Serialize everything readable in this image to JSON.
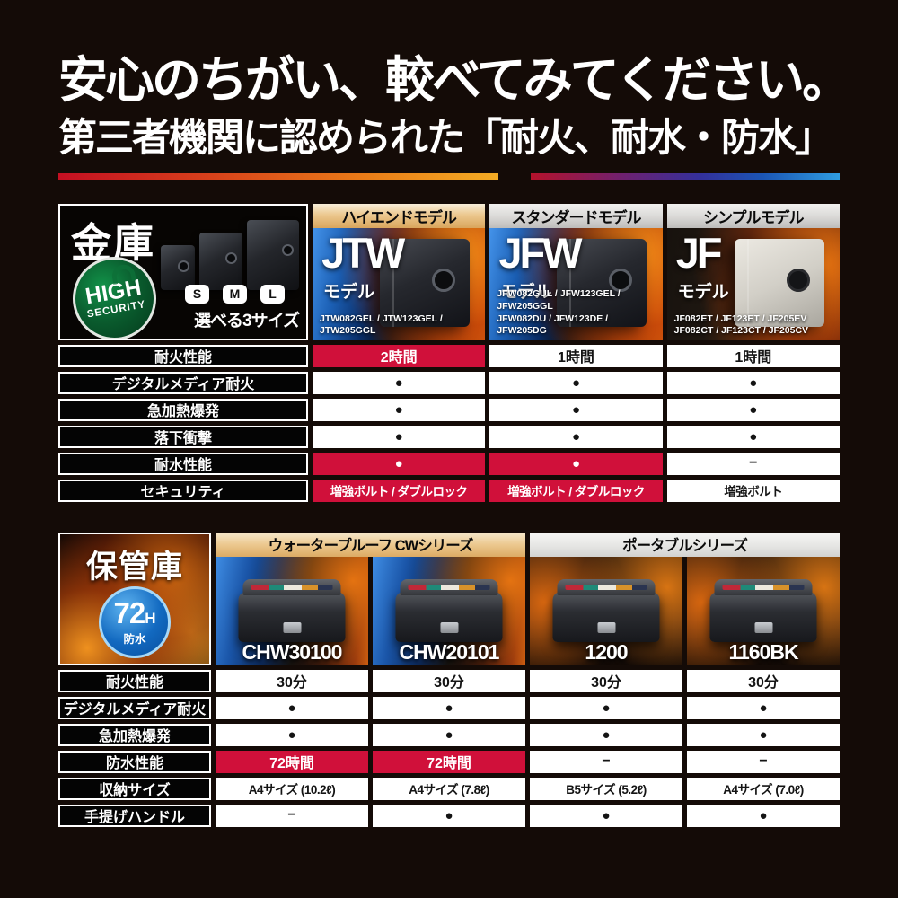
{
  "header": {
    "title_line1": "安心のちがい、較べてみてください。",
    "title_line2": "第三者機関に認められた「耐火、耐水・防水」"
  },
  "colors": {
    "accent_red": "#d0103a",
    "highend_gold": "#e0ab62",
    "series_gray": "#d9d8d6",
    "badge_green": "#0a5c2e",
    "badge_blue": "#1269c0",
    "fire_bar": [
      "#c40f22",
      "#f3ac24"
    ],
    "water_bar": [
      "#b5122b",
      "#2f9de0"
    ]
  },
  "safes_table": {
    "section_label": "金庫",
    "badge": {
      "line1": "HIGH",
      "line2": "SECURITY"
    },
    "sizes": [
      "S",
      "M",
      "L"
    ],
    "sizes_caption": "選べる3サイズ",
    "columns": [
      {
        "tier": "ハイエンドモデル",
        "model": "JTW",
        "model_type": "モデル",
        "numbers_line1": "JTW082GEL / JTW123GEL /",
        "numbers_line2": "JTW205GGL"
      },
      {
        "tier": "スタンダードモデル",
        "model": "JFW",
        "model_type": "モデル",
        "numbers_line1": "JFW082GUL / JFW123GEL / JFW205GGL",
        "numbers_line2": "JFW082DU / JFW123DE / JFW205DG"
      },
      {
        "tier": "シンプルモデル",
        "model": "JF",
        "model_type": "モデル",
        "numbers_line1": "JF082ET / JF123ET / JF205EV",
        "numbers_line2": "JF082CT / JF123CT / JF205CV"
      }
    ],
    "rows": [
      {
        "label": "耐火性能",
        "values": [
          "2時間",
          "1時間",
          "1時間"
        ]
      },
      {
        "label": "デジタルメディア耐火",
        "values": [
          "●",
          "●",
          "●"
        ]
      },
      {
        "label": "急加熱爆発",
        "values": [
          "●",
          "●",
          "●"
        ]
      },
      {
        "label": "落下衝撃",
        "values": [
          "●",
          "●",
          "●"
        ]
      },
      {
        "label": "耐水性能",
        "values": [
          "●",
          "●",
          "−"
        ]
      },
      {
        "label": "セキュリティ",
        "values": [
          "増強ボルト / ダブルロック",
          "増強ボルト / ダブルロック",
          "増強ボルト"
        ]
      }
    ]
  },
  "storage_table": {
    "section_label": "保管庫",
    "badge": {
      "hours": "72",
      "unit": "H",
      "caption": "防水"
    },
    "series": [
      "ウォータープルーフ CWシリーズ",
      "ポータブルシリーズ"
    ],
    "products": [
      "CHW30100",
      "CHW20101",
      "1200",
      "1160BK"
    ],
    "rows": [
      {
        "label": "耐火性能",
        "values": [
          "30分",
          "30分",
          "30分",
          "30分"
        ]
      },
      {
        "label": "デジタルメディア耐火",
        "values": [
          "●",
          "●",
          "●",
          "●"
        ]
      },
      {
        "label": "急加熱爆発",
        "values": [
          "●",
          "●",
          "●",
          "●"
        ]
      },
      {
        "label": "防水性能",
        "values": [
          "72時間",
          "72時間",
          "−",
          "−"
        ]
      },
      {
        "label": "収納サイズ",
        "values": [
          "A4サイズ (10.2ℓ)",
          "A4サイズ (7.8ℓ)",
          "B5サイズ (5.2ℓ)",
          "A4サイズ (7.0ℓ)"
        ]
      },
      {
        "label": "手提げハンドル",
        "values": [
          "−",
          "●",
          "●",
          "●"
        ]
      }
    ]
  }
}
